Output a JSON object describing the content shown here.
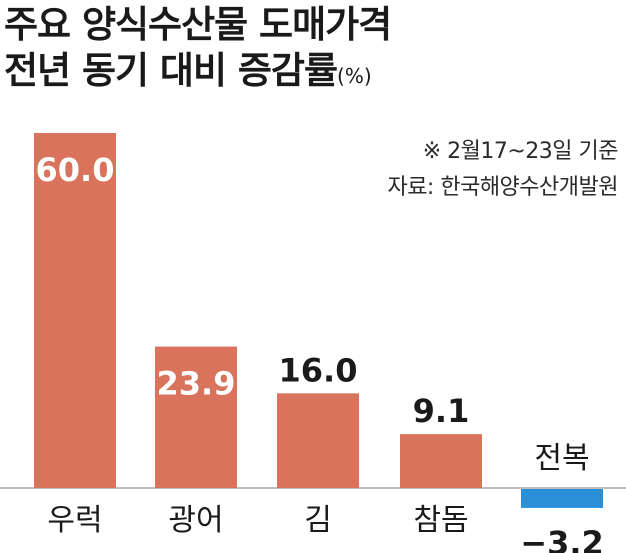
{
  "title_line1": "주요 양식수산물 도매가격",
  "title_line2": "전년 동기 대비 증감률",
  "unit": "(%)",
  "note": "※ 2월17~23일 기준",
  "source": "자료: 한국해양수산개발원",
  "colors": {
    "positive": "#d9735b",
    "negative": "#2a8fd6",
    "text": "#1a1a1a",
    "baseline": "#aaaaaa"
  },
  "chart_data": {
    "type": "bar",
    "categories": [
      "우럭",
      "광어",
      "김",
      "참돔",
      "전복"
    ],
    "values": [
      60.0,
      23.9,
      16.0,
      9.1,
      -3.2
    ],
    "value_labels": [
      "60.0",
      "23.9",
      "16.0",
      "9.1",
      "−3.2"
    ],
    "title": "주요 양식수산물 도매가격 전년 동기 대비 증감률",
    "unit": "%",
    "ylim": [
      -5,
      65
    ],
    "grid": false
  }
}
